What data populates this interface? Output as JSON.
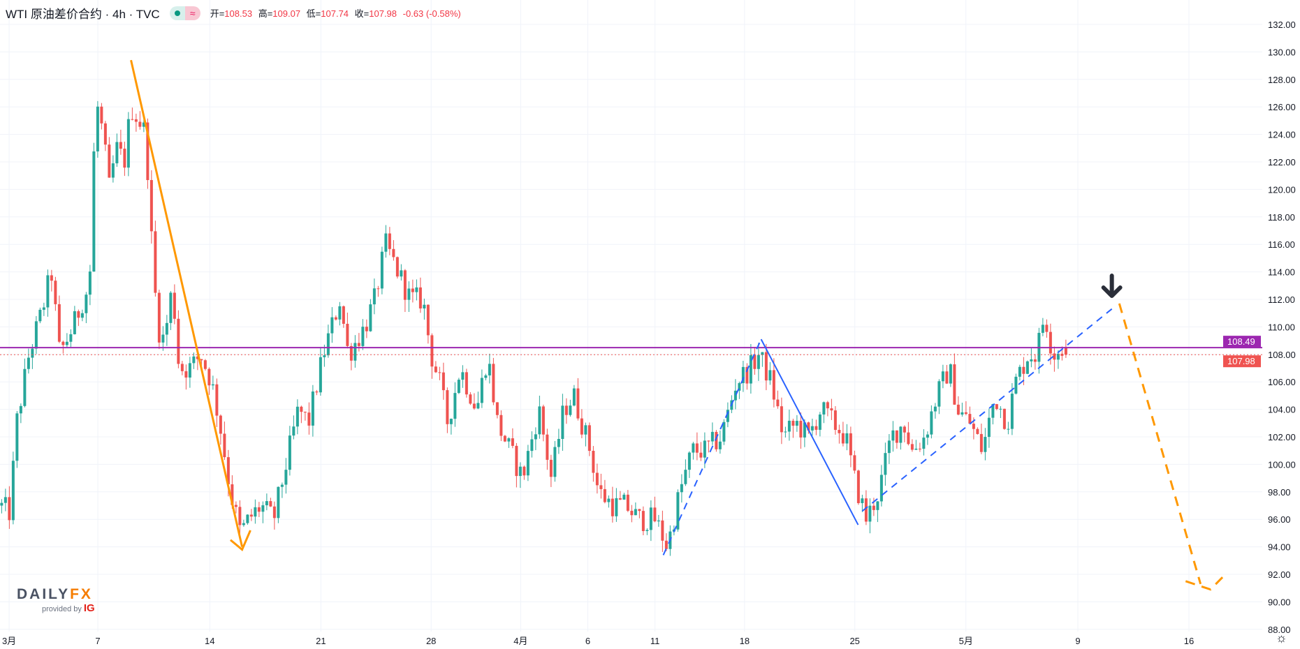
{
  "header": {
    "title": "WTI 原油差价合约 · 4h · TVC",
    "indicator_icon": "≈",
    "open_label": "开=",
    "open": "108.53",
    "high_label": "高=",
    "high": "109.07",
    "low_label": "低=",
    "low": "107.74",
    "close_label": "收=",
    "close": "107.98",
    "change": "-0.63 (-0.58%)"
  },
  "logo": {
    "brand_a": "DAILY",
    "brand_b": "FX",
    "provided": "provided by",
    "ig": "IG"
  },
  "settings_icon": "gear-icon",
  "colors": {
    "up": "#26a69a",
    "down": "#ef5350",
    "purple": "#9c27b0",
    "orange": "#ff9800",
    "blue": "#2962ff",
    "grid": "#f0f3fa"
  },
  "chart_data": {
    "type": "candlestick",
    "symbol": "WTI 原油差价合约",
    "interval": "4h",
    "ylim": [
      88,
      132
    ],
    "y_ticks": [
      "88.00",
      "90.00",
      "92.00",
      "94.00",
      "96.00",
      "98.00",
      "100.00",
      "102.00",
      "104.00",
      "106.00",
      "108.00",
      "110.00",
      "112.00",
      "114.00",
      "116.00",
      "118.00",
      "120.00",
      "122.00",
      "124.00",
      "126.00",
      "128.00",
      "130.00",
      "132.00"
    ],
    "x_ticks": [
      {
        "label": "3月",
        "t": 11
      },
      {
        "label": "7",
        "t": 118
      },
      {
        "label": "14",
        "t": 253
      },
      {
        "label": "21",
        "t": 387
      },
      {
        "label": "28",
        "t": 520
      },
      {
        "label": "4月",
        "t": 628
      },
      {
        "label": "6",
        "t": 709
      },
      {
        "label": "11",
        "t": 790
      },
      {
        "label": "18",
        "t": 898
      },
      {
        "label": "25",
        "t": 1031
      },
      {
        "label": "5月",
        "t": 1165
      },
      {
        "label": "9",
        "t": 1300
      },
      {
        "label": "16",
        "t": 1434
      }
    ],
    "price_path": [
      [
        0,
        97
      ],
      [
        12,
        96.5
      ],
      [
        20,
        103
      ],
      [
        35,
        108
      ],
      [
        50,
        111
      ],
      [
        62,
        114
      ],
      [
        72,
        108
      ],
      [
        88,
        110
      ],
      [
        100,
        112
      ],
      [
        108,
        113
      ],
      [
        114,
        124
      ],
      [
        118,
        126
      ],
      [
        124,
        124
      ],
      [
        132,
        120
      ],
      [
        140,
        123
      ],
      [
        150,
        122
      ],
      [
        158,
        126
      ],
      [
        168,
        125
      ],
      [
        176,
        124
      ],
      [
        182,
        117
      ],
      [
        190,
        110
      ],
      [
        198,
        109
      ],
      [
        208,
        113
      ],
      [
        216,
        107
      ],
      [
        230,
        107
      ],
      [
        242,
        108
      ],
      [
        255,
        106
      ],
      [
        265,
        103
      ],
      [
        278,
        98
      ],
      [
        290,
        95
      ],
      [
        300,
        96
      ],
      [
        315,
        97
      ],
      [
        330,
        96
      ],
      [
        345,
        100
      ],
      [
        360,
        104
      ],
      [
        372,
        103
      ],
      [
        390,
        108
      ],
      [
        410,
        112
      ],
      [
        420,
        108
      ],
      [
        440,
        110
      ],
      [
        452,
        112
      ],
      [
        465,
        116
      ],
      [
        480,
        114
      ],
      [
        495,
        112
      ],
      [
        510,
        112
      ],
      [
        520,
        108
      ],
      [
        530,
        106
      ],
      [
        540,
        103
      ],
      [
        555,
        107
      ],
      [
        575,
        104
      ],
      [
        588,
        108
      ],
      [
        600,
        103
      ],
      [
        615,
        101
      ],
      [
        630,
        99
      ],
      [
        650,
        104
      ],
      [
        665,
        99
      ],
      [
        680,
        104
      ],
      [
        692,
        105
      ],
      [
        702,
        103
      ],
      [
        712,
        101
      ],
      [
        722,
        98
      ],
      [
        740,
        97
      ],
      [
        755,
        97
      ],
      [
        770,
        96
      ],
      [
        790,
        96
      ],
      [
        805,
        94
      ],
      [
        820,
        98
      ],
      [
        835,
        101
      ],
      [
        850,
        101
      ],
      [
        870,
        102
      ],
      [
        888,
        106
      ],
      [
        905,
        107
      ],
      [
        915,
        108
      ],
      [
        930,
        106
      ],
      [
        945,
        102
      ],
      [
        960,
        103
      ],
      [
        975,
        102
      ],
      [
        990,
        104
      ],
      [
        1005,
        103
      ],
      [
        1020,
        102
      ],
      [
        1030,
        99
      ],
      [
        1045,
        96
      ],
      [
        1060,
        98
      ],
      [
        1075,
        102
      ],
      [
        1090,
        103
      ],
      [
        1100,
        101
      ],
      [
        1115,
        102
      ],
      [
        1130,
        105
      ],
      [
        1145,
        107
      ],
      [
        1155,
        104
      ],
      [
        1170,
        103
      ],
      [
        1185,
        101
      ],
      [
        1200,
        105
      ],
      [
        1215,
        103
      ],
      [
        1225,
        106
      ],
      [
        1240,
        108
      ],
      [
        1250,
        108
      ],
      [
        1260,
        111
      ],
      [
        1270,
        108
      ],
      [
        1283,
        108.5
      ],
      [
        1290,
        108
      ]
    ],
    "last_bar": {
      "open": 108.53,
      "high": 109.07,
      "low": 107.74,
      "close": 107.98
    },
    "horizontal_lines": [
      {
        "price": 108.49,
        "label": "108.49",
        "color": "#9c27b0",
        "style": "solid"
      },
      {
        "price": 107.98,
        "label": "107.98",
        "color": "#ef5350",
        "style": "dotted"
      }
    ],
    "drawings": [
      {
        "name": "orange-trendline",
        "color": "#ff9800",
        "dash": false,
        "points": [
          [
            158,
            129.4
          ],
          [
            292,
            94.0
          ]
        ]
      },
      {
        "name": "orange-v-mark",
        "color": "#ff9800",
        "dash": false,
        "points": [
          [
            278,
            94.5
          ],
          [
            292,
            93.8
          ],
          [
            302,
            95.2
          ]
        ]
      },
      {
        "name": "blue-down-leg",
        "color": "#2962ff",
        "dash": false,
        "points": [
          [
            918,
            109.1
          ],
          [
            1035,
            95.6
          ]
        ]
      },
      {
        "name": "blue-dashed-up-1",
        "color": "#2962ff",
        "dash": true,
        "points": [
          [
            800,
            93.4
          ],
          [
            918,
            109.1
          ]
        ]
      },
      {
        "name": "blue-dashed-up-2",
        "color": "#2962ff",
        "dash": true,
        "points": [
          [
            1040,
            96.6
          ],
          [
            1345,
            111.5
          ]
        ]
      },
      {
        "name": "orange-dashed-projection",
        "color": "#ff9800",
        "dash": true,
        "points": [
          [
            1350,
            111.7
          ],
          [
            1448,
            91.3
          ]
        ]
      },
      {
        "name": "orange-dashed-v",
        "color": "#ff9800",
        "dash": true,
        "points": [
          [
            1430,
            91.5
          ],
          [
            1460,
            90.9
          ],
          [
            1478,
            92.0
          ]
        ]
      }
    ],
    "arrow_marker": {
      "t": 1341,
      "price": 112.2,
      "direction": "down"
    }
  }
}
